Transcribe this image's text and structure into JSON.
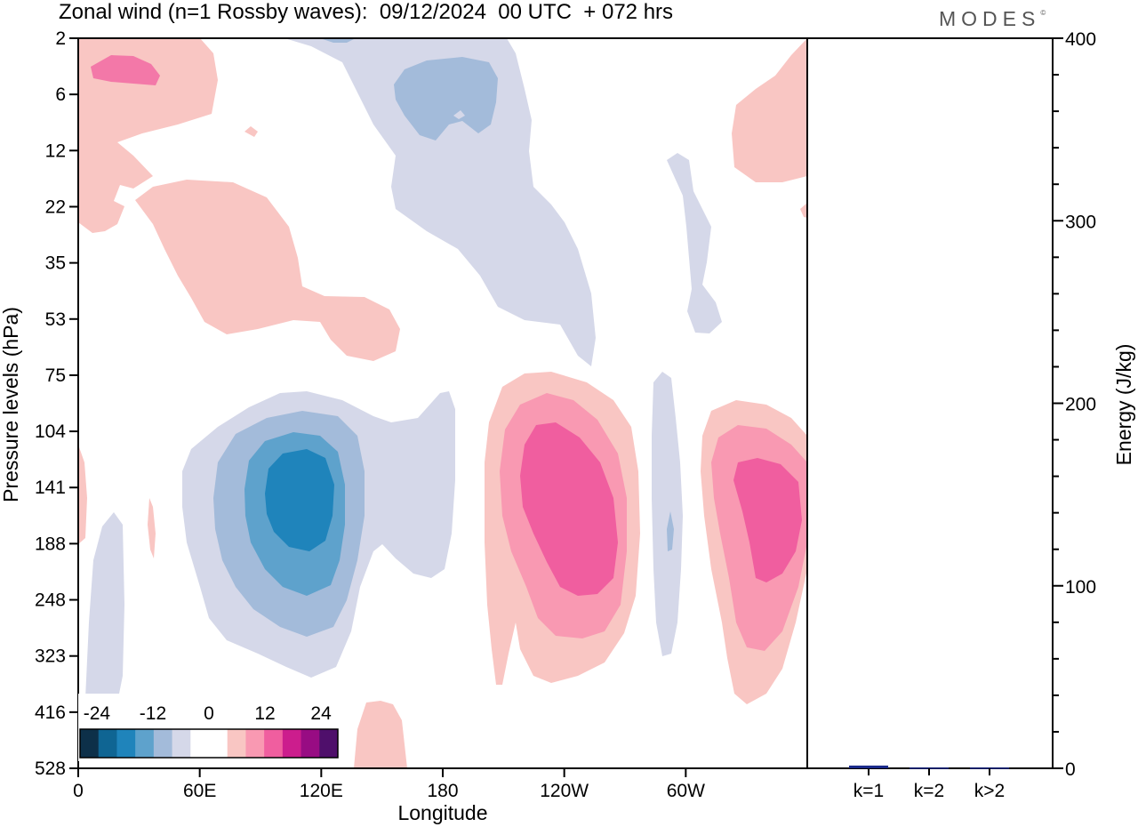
{
  "header": {
    "title": "Zonal wind (n=1 Rossby waves):  09/12/2024  00 UTC  + 072 hrs",
    "logo": "MODES",
    "logo_mark": "©"
  },
  "chart_data": [
    {
      "type": "contour",
      "xlabel": "Longitude",
      "ylabel": "Pressure levels (hPa)",
      "x_tick_labels": [
        "0",
        "60E",
        "120E",
        "180",
        "120W",
        "60W"
      ],
      "x_ticks_deg": [
        0,
        60,
        120,
        180,
        240,
        300
      ],
      "xlim_deg": [
        0,
        360
      ],
      "y_tick_labels": [
        "2",
        "6",
        "12",
        "22",
        "35",
        "53",
        "75",
        "104",
        "141",
        "188",
        "248",
        "323",
        "416",
        "528"
      ],
      "y_scale": "model levels (top 2 hPa, bottom 528 hPa)",
      "colorbar": {
        "tick_labels": [
          "-24",
          "-12",
          "0",
          "12",
          "24"
        ],
        "colors": [
          "#0d3049",
          "#0f6593",
          "#1f84bb",
          "#5ea2cc",
          "#a3bbda",
          "#d5d8e9",
          "#ffffff",
          "#ffffff",
          "#f9c6c3",
          "#f999b2",
          "#f05e9f",
          "#cc1d8d",
          "#980c83",
          "#4f0f6b"
        ]
      },
      "regions": [
        {
          "name": "blue-max-120E",
          "lon": 110,
          "pressure_hPa": 141,
          "sign": "negative"
        },
        {
          "name": "pink-max-120W",
          "lon": 235,
          "pressure_hPa": 188,
          "sign": "positive"
        },
        {
          "name": "pink-max-40W",
          "lon": 322,
          "pressure_hPa": 160,
          "sign": "positive"
        },
        {
          "name": "blue-upper-170W",
          "lon": 192,
          "pressure_hPa": 6,
          "sign": "negative"
        }
      ]
    },
    {
      "type": "bar",
      "categories": [
        "k=1",
        "k=2",
        "k>2"
      ],
      "values": [
        1.5,
        0.4,
        0.4
      ],
      "ylabel": "Energy (J/kg)",
      "ylim": [
        0,
        400
      ],
      "y_tick_labels": [
        "0",
        "100",
        "200",
        "300",
        "400"
      ],
      "y_ticks": [
        0,
        100,
        200,
        300,
        400
      ],
      "bar_color": "#1a2a8a"
    }
  ]
}
